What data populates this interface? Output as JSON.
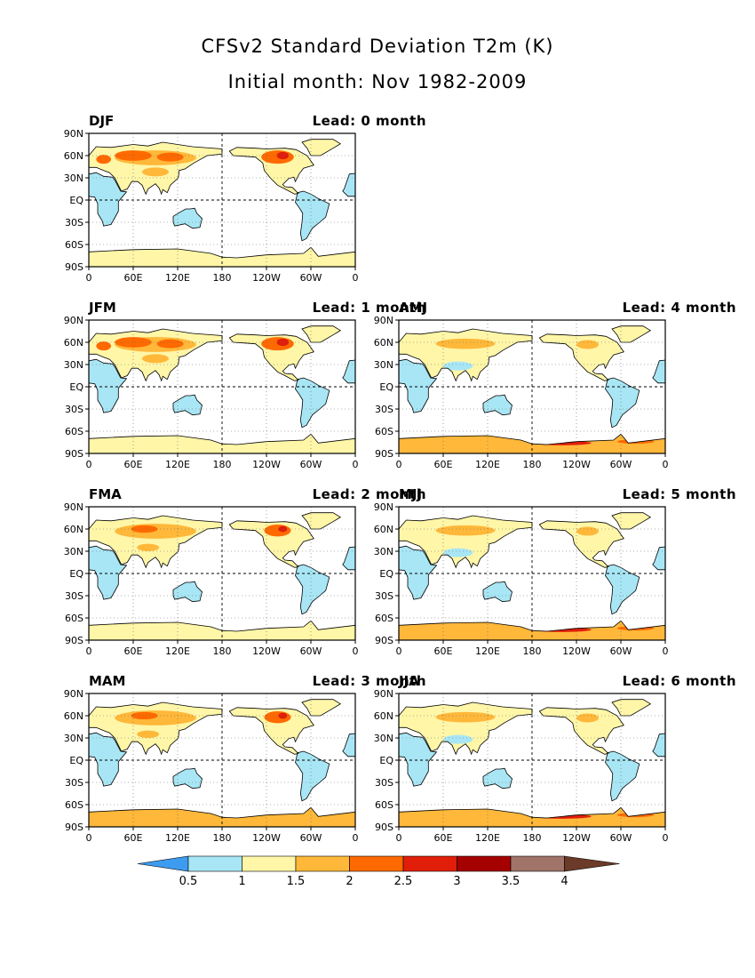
{
  "title": "CFSv2 Standard Deviation T2m (K)",
  "subtitle": "Initial month: Nov 1982-2009",
  "panels": [
    {
      "season": "DJF",
      "lead": "Lead: 0 month",
      "lead_months": 0
    },
    {
      "season": "JFM",
      "lead": "Lead: 1 month",
      "lead_months": 1
    },
    {
      "season": "AMJ",
      "lead": "Lead: 4 month",
      "lead_months": 4
    },
    {
      "season": "FMA",
      "lead": "Lead: 2 month",
      "lead_months": 2
    },
    {
      "season": "MJJ",
      "lead": "Lead: 5 month",
      "lead_months": 5
    },
    {
      "season": "MAM",
      "lead": "Lead: 3 month",
      "lead_months": 3
    },
    {
      "season": "JJA",
      "lead": "Lead: 6 month",
      "lead_months": 6
    }
  ],
  "lat_labels": [
    "90N",
    "60N",
    "30N",
    "EQ",
    "30S",
    "60S",
    "90S"
  ],
  "lon_labels": [
    "0",
    "60E",
    "120E",
    "180",
    "120W",
    "60W",
    "0"
  ],
  "colorbar": {
    "labels": [
      "0.5",
      "1",
      "1.5",
      "2",
      "2.5",
      "3",
      "3.5",
      "4"
    ],
    "colors": [
      "#3d9cf0",
      "#a8e6f5",
      "#fff6a8",
      "#ffb83a",
      "#ff6a00",
      "#e01e0a",
      "#a50000",
      "#a07468",
      "#6b3a28"
    ]
  },
  "colors": {
    "land_cold": "#a8e6f5",
    "land_mild": "#fff6a8",
    "land_warm": "#ffb83a",
    "land_hot": "#ff6a00",
    "land_very_hot": "#e01e0a",
    "land_extreme": "#a50000",
    "low": "#3d9cf0"
  }
}
